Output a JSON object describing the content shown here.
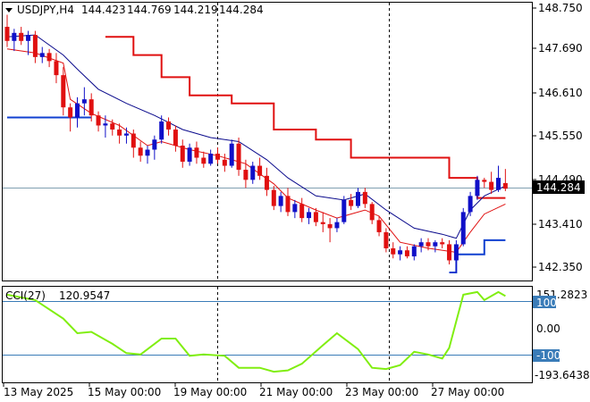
{
  "header": {
    "symbol": "USDJPY,H4",
    "open": "144.423",
    "high": "144.769",
    "low": "144.219",
    "close": "144.284"
  },
  "price_scale": [
    "148.750",
    "147.690",
    "146.610",
    "145.550",
    "144.490",
    "143.410",
    "142.350"
  ],
  "current_price_label": "144.284",
  "indicator": {
    "name": "CCI(27)",
    "value": "120.9547",
    "scale": [
      "151.2823",
      "100",
      "0.00",
      "-100",
      "-193.6438"
    ]
  },
  "time_labels": [
    "13 May 2025",
    "15 May 00:00",
    "19 May 00:00",
    "21 May 00:00",
    "23 May 00:00",
    "27 May 00:00"
  ],
  "colors": {
    "bull": "#1010c8",
    "bear": "#e01010",
    "ma_fast": "#e01010",
    "ma_slow": "#0a0a8c",
    "step_red": "#e01010",
    "step_blue": "#1040d0",
    "cci": "#80ee10",
    "grid": "#000000"
  },
  "chart_data": {
    "type": "candlestick",
    "ylim": [
      142.0,
      148.9
    ],
    "candles": [
      [
        148.3,
        148.6,
        147.8,
        147.95
      ],
      [
        147.95,
        148.25,
        147.7,
        148.15
      ],
      [
        148.15,
        148.3,
        147.85,
        147.95
      ],
      [
        147.95,
        148.2,
        147.6,
        148.1
      ],
      [
        148.1,
        148.2,
        147.4,
        147.55
      ],
      [
        147.55,
        147.8,
        147.4,
        147.65
      ],
      [
        147.65,
        147.75,
        147.3,
        147.45
      ],
      [
        147.45,
        147.65,
        146.9,
        147.1
      ],
      [
        147.1,
        147.3,
        146.1,
        146.3
      ],
      [
        146.3,
        146.4,
        145.7,
        146.05
      ],
      [
        146.05,
        146.55,
        145.8,
        146.4
      ],
      [
        146.4,
        146.8,
        146.1,
        146.5
      ],
      [
        146.5,
        146.65,
        145.95,
        146.1
      ],
      [
        146.1,
        146.2,
        145.7,
        145.85
      ],
      [
        145.85,
        146.1,
        145.55,
        145.9
      ],
      [
        145.9,
        146.0,
        145.6,
        145.75
      ],
      [
        145.75,
        145.9,
        145.4,
        145.6
      ],
      [
        145.6,
        145.8,
        145.4,
        145.65
      ],
      [
        145.65,
        145.75,
        145.05,
        145.3
      ],
      [
        145.3,
        145.45,
        144.95,
        145.1
      ],
      [
        145.1,
        145.35,
        144.9,
        145.25
      ],
      [
        145.25,
        145.6,
        145.0,
        145.5
      ],
      [
        145.5,
        146.1,
        145.4,
        145.95
      ],
      [
        145.95,
        146.05,
        145.6,
        145.75
      ],
      [
        145.75,
        145.85,
        145.2,
        145.35
      ],
      [
        145.35,
        145.5,
        144.8,
        144.95
      ],
      [
        144.95,
        145.4,
        144.85,
        145.3
      ],
      [
        145.3,
        145.45,
        144.9,
        145.05
      ],
      [
        145.05,
        145.2,
        144.8,
        144.9
      ],
      [
        144.9,
        145.25,
        144.85,
        145.15
      ],
      [
        145.15,
        145.3,
        144.9,
        145.0
      ],
      [
        145.0,
        145.15,
        144.7,
        144.85
      ],
      [
        144.85,
        145.5,
        144.8,
        145.4
      ],
      [
        145.4,
        145.55,
        144.6,
        144.75
      ],
      [
        144.75,
        145.0,
        144.3,
        144.5
      ],
      [
        144.5,
        144.95,
        144.4,
        144.85
      ],
      [
        144.85,
        145.05,
        144.5,
        144.6
      ],
      [
        144.6,
        144.8,
        144.1,
        144.25
      ],
      [
        144.25,
        144.35,
        143.75,
        143.85
      ],
      [
        143.85,
        144.2,
        143.7,
        144.1
      ],
      [
        144.1,
        144.3,
        143.6,
        143.7
      ],
      [
        143.7,
        144.0,
        143.55,
        143.9
      ],
      [
        143.9,
        144.05,
        143.45,
        143.55
      ],
      [
        143.55,
        143.8,
        143.4,
        143.7
      ],
      [
        143.7,
        143.8,
        143.35,
        143.45
      ],
      [
        143.45,
        143.7,
        143.2,
        143.4
      ],
      [
        143.4,
        143.55,
        142.95,
        143.3
      ],
      [
        143.3,
        143.55,
        143.2,
        143.45
      ],
      [
        143.45,
        144.1,
        143.4,
        144.0
      ],
      [
        144.0,
        144.15,
        143.75,
        143.85
      ],
      [
        143.85,
        144.3,
        143.8,
        144.2
      ],
      [
        144.2,
        144.3,
        143.8,
        143.9
      ],
      [
        143.9,
        143.95,
        143.4,
        143.5
      ],
      [
        143.5,
        143.6,
        143.1,
        143.2
      ],
      [
        143.2,
        143.3,
        142.7,
        142.8
      ],
      [
        142.8,
        142.95,
        142.55,
        142.65
      ],
      [
        142.65,
        142.85,
        142.5,
        142.75
      ],
      [
        142.75,
        142.85,
        142.55,
        142.6
      ],
      [
        142.6,
        142.9,
        142.5,
        142.85
      ],
      [
        142.85,
        143.05,
        142.7,
        142.95
      ],
      [
        142.95,
        143.05,
        142.75,
        142.85
      ],
      [
        142.85,
        143.0,
        142.7,
        142.95
      ],
      [
        142.95,
        143.05,
        142.8,
        142.9
      ],
      [
        142.9,
        143.0,
        142.4,
        142.5
      ],
      [
        142.5,
        143.0,
        142.2,
        142.9
      ],
      [
        142.9,
        143.8,
        142.85,
        143.7
      ],
      [
        143.7,
        144.2,
        143.6,
        144.1
      ],
      [
        144.1,
        144.6,
        144.0,
        144.5
      ],
      [
        144.5,
        144.55,
        144.3,
        144.45
      ],
      [
        144.45,
        144.7,
        144.15,
        144.25
      ],
      [
        144.25,
        144.85,
        144.2,
        144.55
      ],
      [
        144.42,
        144.77,
        144.22,
        144.28
      ]
    ],
    "ma_fast": [
      [
        0,
        147.75
      ],
      [
        4,
        147.65
      ],
      [
        8,
        147.4
      ],
      [
        9,
        146.5
      ],
      [
        12,
        146.15
      ],
      [
        16,
        145.85
      ],
      [
        20,
        145.35
      ],
      [
        22,
        145.45
      ],
      [
        26,
        145.25
      ],
      [
        30,
        145.1
      ],
      [
        34,
        144.9
      ],
      [
        38,
        144.4
      ],
      [
        40,
        144.05
      ],
      [
        44,
        143.75
      ],
      [
        47,
        143.55
      ],
      [
        51,
        143.75
      ],
      [
        53,
        143.6
      ],
      [
        56,
        142.95
      ],
      [
        60,
        142.8
      ],
      [
        64,
        142.7
      ],
      [
        66,
        143.2
      ],
      [
        68,
        143.65
      ],
      [
        71,
        143.9
      ]
    ],
    "ma_slow": [
      [
        0,
        148.05
      ],
      [
        4,
        148.1
      ],
      [
        8,
        147.6
      ],
      [
        10,
        147.25
      ],
      [
        13,
        146.75
      ],
      [
        17,
        146.4
      ],
      [
        21,
        146.1
      ],
      [
        25,
        145.75
      ],
      [
        29,
        145.55
      ],
      [
        33,
        145.45
      ],
      [
        37,
        145.0
      ],
      [
        40,
        144.55
      ],
      [
        44,
        144.1
      ],
      [
        48,
        144.0
      ],
      [
        51,
        144.15
      ],
      [
        54,
        143.75
      ],
      [
        58,
        143.3
      ],
      [
        62,
        143.15
      ],
      [
        64,
        143.05
      ],
      [
        66,
        143.75
      ],
      [
        68,
        144.1
      ],
      [
        71,
        144.35
      ]
    ],
    "step_red": [
      [
        14,
        148.05
      ],
      [
        18,
        148.05
      ],
      [
        18,
        147.6
      ],
      [
        22,
        147.6
      ],
      [
        22,
        147.05
      ],
      [
        26,
        147.05
      ],
      [
        26,
        146.6
      ],
      [
        32,
        146.6
      ],
      [
        32,
        146.4
      ],
      [
        38,
        146.4
      ],
      [
        38,
        145.75
      ],
      [
        44,
        145.75
      ],
      [
        44,
        145.5
      ],
      [
        49,
        145.5
      ],
      [
        49,
        145.05
      ],
      [
        63,
        145.05
      ],
      [
        63,
        144.55
      ],
      [
        67,
        144.55
      ],
      [
        67,
        144.05
      ],
      [
        71,
        144.05
      ]
    ],
    "step_blue_top": [
      [
        0,
        146.05
      ],
      [
        12,
        146.05
      ]
    ],
    "step_blue_bottom": [
      [
        63,
        142.2
      ],
      [
        64,
        142.2
      ],
      [
        64,
        142.65
      ],
      [
        68,
        142.65
      ],
      [
        68,
        143.0
      ],
      [
        71,
        143.0
      ]
    ],
    "cci": {
      "ylim": [
        -200,
        160
      ],
      "points": [
        [
          0,
          130
        ],
        [
          4,
          110
        ],
        [
          8,
          40
        ],
        [
          10,
          -15
        ],
        [
          12,
          -10
        ],
        [
          15,
          -55
        ],
        [
          17,
          -90
        ],
        [
          19,
          -95
        ],
        [
          22,
          -35
        ],
        [
          24,
          -35
        ],
        [
          26,
          -100
        ],
        [
          28,
          -95
        ],
        [
          31,
          -100
        ],
        [
          33,
          -145
        ],
        [
          36,
          -145
        ],
        [
          38,
          -160
        ],
        [
          40,
          -155
        ],
        [
          42,
          -130
        ],
        [
          45,
          -60
        ],
        [
          47,
          -15
        ],
        [
          50,
          -75
        ],
        [
          52,
          -145
        ],
        [
          54,
          -150
        ],
        [
          56,
          -135
        ],
        [
          58,
          -85
        ],
        [
          60,
          -95
        ],
        [
          62,
          -110
        ],
        [
          63,
          -70
        ],
        [
          64,
          30
        ],
        [
          65,
          130
        ],
        [
          67,
          140
        ],
        [
          68,
          110
        ],
        [
          70,
          140
        ],
        [
          71,
          125
        ]
      ]
    }
  }
}
